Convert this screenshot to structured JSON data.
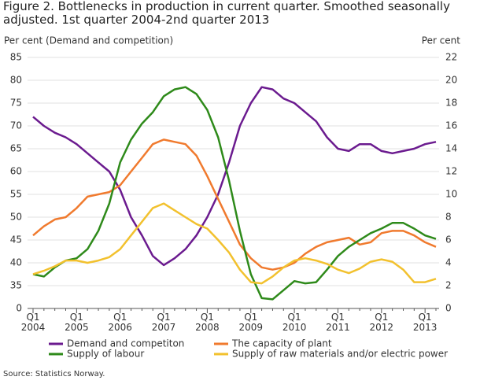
{
  "chart_data": {
    "type": "line",
    "title": "Figure 2. Bottlenecks in production in current quarter. Smoothed seasonally adjusted. 1st quarter 2004-2nd quarter 2013",
    "y_label": "Per cent (Demand and competition)",
    "y2_label": "Per cent",
    "source": "Source: Statistics Norway.",
    "categories": [
      "Q1\n2004",
      null,
      null,
      null,
      "Q1\n2005",
      null,
      null,
      null,
      "Q1\n2006",
      null,
      null,
      null,
      "Q1\n2007",
      null,
      null,
      null,
      "Q1\n2008",
      null,
      null,
      null,
      "Q1\n2009",
      null,
      null,
      null,
      "Q1\n2010",
      null,
      null,
      null,
      "Q1\n2011",
      null,
      null,
      null,
      "Q1\n2012",
      null,
      null,
      null,
      "Q1\n2013",
      null
    ],
    "ylim": [
      30,
      85
    ],
    "yticks": [
      {
        "value": 30,
        "label": "0"
      },
      35,
      40,
      45,
      50,
      55,
      60,
      65,
      70,
      75,
      80,
      85
    ],
    "y2lim": [
      0,
      22
    ],
    "y2ticks": [
      0,
      2,
      4,
      6,
      8,
      10,
      12,
      14,
      16,
      18,
      20,
      22
    ],
    "grid": true,
    "series": [
      {
        "name": "Demand and competiton",
        "color": "#6b1b8f",
        "values": [
          72,
          70,
          68.5,
          67.5,
          66,
          64,
          62,
          60,
          56,
          50,
          46,
          41.5,
          39.5,
          41,
          43,
          46,
          50,
          55,
          62,
          70,
          75,
          78.5,
          78,
          76,
          75,
          73,
          71,
          67.5,
          65,
          64.5,
          66,
          66,
          64.5,
          64,
          64.5,
          65,
          66,
          66.5
        ]
      },
      {
        "name": "The capacity of plant",
        "color": "#f07a2e",
        "values": [
          46,
          48,
          49.5,
          50,
          52,
          54.5,
          55,
          55.5,
          57,
          60,
          63,
          66,
          67,
          66.5,
          66,
          63.5,
          59,
          54,
          49,
          44,
          41,
          39,
          38.5,
          39,
          40,
          42,
          43.5,
          44.5,
          45,
          45.5,
          44,
          44.5,
          46.5,
          47,
          47,
          46,
          44.5,
          43.5
        ]
      },
      {
        "name": "Supply of labour",
        "color": "#2e8a1a",
        "axis": "y2",
        "values": [
          3.0,
          2.8,
          3.6,
          4.2,
          4.4,
          5.2,
          6.8,
          9.2,
          12.8,
          14.8,
          16.2,
          17.2,
          18.6,
          19.2,
          19.4,
          18.8,
          17.4,
          15.0,
          11.2,
          6.8,
          3.0,
          0.9,
          0.8,
          1.6,
          2.4,
          2.2,
          2.3,
          3.4,
          4.6,
          5.4,
          6.0,
          6.6,
          7.0,
          7.5,
          7.5,
          7.0,
          6.4,
          6.1
        ]
      },
      {
        "name": "Supply of raw materials and/or electric power",
        "color": "#f2c12e",
        "axis": "y2",
        "values": [
          3.0,
          3.3,
          3.7,
          4.2,
          4.2,
          4.0,
          4.2,
          4.5,
          5.2,
          6.4,
          7.6,
          8.8,
          9.2,
          8.6,
          8.0,
          7.4,
          7.0,
          6.0,
          4.9,
          3.4,
          2.3,
          2.2,
          2.8,
          3.6,
          4.2,
          4.4,
          4.2,
          3.9,
          3.4,
          3.1,
          3.5,
          4.1,
          4.3,
          4.1,
          3.4,
          2.3,
          2.3,
          2.6
        ]
      }
    ]
  }
}
